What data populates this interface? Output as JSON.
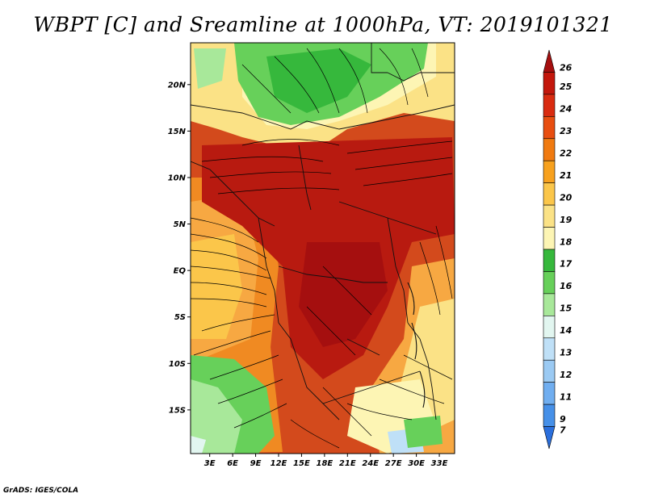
{
  "title": "WBPT [C] and Sreamline at 1000hPa, VT: 2019101321",
  "credit": "GrADS: IGES/COLA",
  "map": {
    "lat_ticks": [
      {
        "label": "20N",
        "lat": 20
      },
      {
        "label": "15N",
        "lat": 15
      },
      {
        "label": "10N",
        "lat": 10
      },
      {
        "label": "5N",
        "lat": 5
      },
      {
        "label": "EQ",
        "lat": 0
      },
      {
        "label": "5S",
        "lat": -5
      },
      {
        "label": "10S",
        "lat": -10
      },
      {
        "label": "15S",
        "lat": -15
      }
    ],
    "lon_ticks": [
      {
        "label": "3E",
        "lon": 3
      },
      {
        "label": "6E",
        "lon": 6
      },
      {
        "label": "9E",
        "lon": 9
      },
      {
        "label": "12E",
        "lon": 12
      },
      {
        "label": "15E",
        "lon": 15
      },
      {
        "label": "18E",
        "lon": 18
      },
      {
        "label": "21E",
        "lon": 21
      },
      {
        "label": "24E",
        "lon": 24
      },
      {
        "label": "27E",
        "lon": 27
      },
      {
        "label": "30E",
        "lon": 30
      },
      {
        "label": "33E",
        "lon": 33
      }
    ],
    "lon_range": [
      0.5,
      35
    ],
    "lat_range": [
      -19.7,
      24.5
    ]
  },
  "colorbar": {
    "labels": [
      "26",
      "25",
      "24",
      "23",
      "22",
      "21",
      "20",
      "19",
      "18",
      "17",
      "16",
      "15",
      "14",
      "13",
      "12",
      "11",
      "9",
      "7"
    ],
    "colors": [
      "#a50f0f",
      "#c3170c",
      "#d92b10",
      "#e84e10",
      "#f07a10",
      "#f7a11e",
      "#fbc64a",
      "#fbe286",
      "#fdf5b4",
      "#36b83c",
      "#67d05a",
      "#a8e89a",
      "#e2f6f0",
      "#bfe0f7",
      "#9bcaf3",
      "#70aef0",
      "#4690e8",
      "#2b6fdc"
    ]
  }
}
